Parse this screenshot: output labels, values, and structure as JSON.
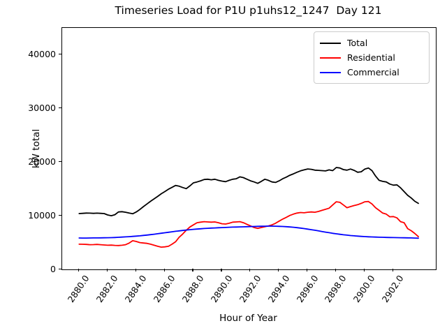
{
  "chart_data": {
    "type": "line",
    "title": "Timeseries Load for P1U p1uhs12_1247  Day 121",
    "xlabel": "Hour of Year",
    "ylabel": "kW total",
    "xlim": [
      2878.81,
      2904.97
    ],
    "ylim": [
      0,
      45000
    ],
    "grid": false,
    "legend_position": "upper right",
    "x_ticks": [
      2880,
      2882,
      2884,
      2886,
      2888,
      2890,
      2892,
      2894,
      2896,
      2898,
      2900,
      2902
    ],
    "x_tick_labels": [
      "2880.0",
      "2882.0",
      "2884.0",
      "2886.0",
      "2888.0",
      "2890.0",
      "2892.0",
      "2894.0",
      "2896.0",
      "2898.0",
      "2900.0",
      "2902.0"
    ],
    "y_ticks": [
      0,
      10000,
      20000,
      30000,
      40000
    ],
    "y_tick_labels": [
      "0",
      "10000",
      "20000",
      "30000",
      "40000"
    ],
    "x_start": 2880.0,
    "x_step": 0.25,
    "series": [
      {
        "name": "Total",
        "color": "#000000",
        "values": [
          10400,
          10450,
          10500,
          10480,
          10450,
          10480,
          10450,
          10400,
          10150,
          10000,
          10200,
          10700,
          10750,
          10650,
          10500,
          10370,
          10700,
          11170,
          11700,
          12200,
          12700,
          13150,
          13600,
          14100,
          14500,
          14950,
          15300,
          15650,
          15500,
          15250,
          15050,
          15550,
          16130,
          16300,
          16500,
          16750,
          16800,
          16700,
          16800,
          16600,
          16450,
          16350,
          16600,
          16800,
          16900,
          17250,
          17100,
          16800,
          16500,
          16300,
          16040,
          16400,
          16800,
          16600,
          16300,
          16200,
          16500,
          16900,
          17200,
          17550,
          17800,
          18100,
          18360,
          18550,
          18720,
          18650,
          18500,
          18450,
          18400,
          18350,
          18550,
          18400,
          18990,
          18900,
          18600,
          18500,
          18700,
          18450,
          18100,
          18200,
          18700,
          18900,
          18400,
          17400,
          16600,
          16400,
          16300,
          15900,
          15700,
          15750,
          15200,
          14500,
          13800,
          13300,
          12700,
          12300
        ]
      },
      {
        "name": "Residential",
        "color": "#ff0000",
        "values": [
          4700,
          4680,
          4650,
          4600,
          4620,
          4650,
          4600,
          4550,
          4500,
          4520,
          4480,
          4450,
          4500,
          4600,
          4900,
          5350,
          5200,
          5000,
          4920,
          4850,
          4700,
          4500,
          4300,
          4150,
          4200,
          4300,
          4700,
          5150,
          6000,
          6600,
          7300,
          7900,
          8300,
          8700,
          8800,
          8900,
          8850,
          8800,
          8850,
          8700,
          8500,
          8450,
          8600,
          8800,
          8850,
          8900,
          8700,
          8400,
          8100,
          7800,
          7650,
          7800,
          7950,
          8100,
          8300,
          8600,
          9000,
          9380,
          9700,
          10050,
          10300,
          10500,
          10600,
          10550,
          10650,
          10700,
          10650,
          10800,
          11000,
          11200,
          11400,
          12000,
          12600,
          12500,
          12000,
          11500,
          11700,
          11900,
          12050,
          12300,
          12600,
          12650,
          12200,
          11500,
          11000,
          10500,
          10300,
          9800,
          9850,
          9600,
          8900,
          8700,
          7600,
          7200,
          6700,
          6100
        ]
      },
      {
        "name": "Commercial",
        "color": "#0000ff",
        "values": [
          5850,
          5840,
          5840,
          5850,
          5860,
          5870,
          5880,
          5890,
          5900,
          5920,
          5950,
          5980,
          6020,
          6060,
          6100,
          6150,
          6200,
          6260,
          6330,
          6400,
          6480,
          6560,
          6650,
          6740,
          6830,
          6920,
          7010,
          7100,
          7180,
          7260,
          7330,
          7400,
          7460,
          7520,
          7570,
          7620,
          7660,
          7700,
          7730,
          7760,
          7790,
          7820,
          7850,
          7880,
          7900,
          7920,
          7940,
          7960,
          7980,
          8000,
          8020,
          8040,
          8050,
          8060,
          8060,
          8050,
          8030,
          8000,
          7960,
          7910,
          7850,
          7780,
          7700,
          7610,
          7510,
          7400,
          7290,
          7180,
          7060,
          6950,
          6840,
          6730,
          6630,
          6540,
          6450,
          6380,
          6310,
          6250,
          6200,
          6150,
          6110,
          6080,
          6050,
          6020,
          6000,
          5980,
          5960,
          5950,
          5930,
          5920,
          5900,
          5890,
          5880,
          5860,
          5840,
          5820
        ]
      }
    ]
  }
}
